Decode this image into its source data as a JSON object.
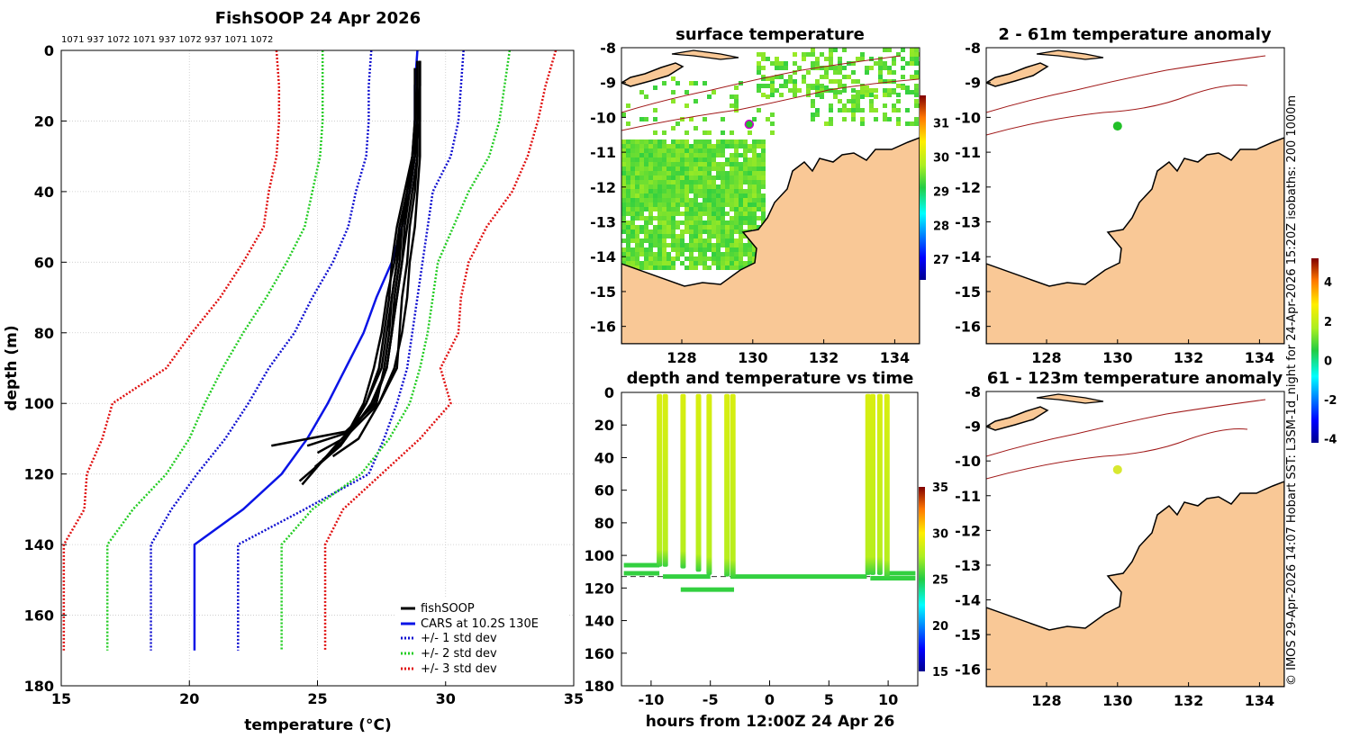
{
  "figure": {
    "main_title": "FishSOOP 24 Apr 2026",
    "profile_ids": "1071 937 1072 1071 937 1072 937 1071 1072",
    "credit": "© IMOS 29-Apr-2026 14:07 Hobart SST: L3SM-1d_night for 24-Apr-2026 15:20Z isobaths: 200  1000m"
  },
  "colors": {
    "land": "#f9c896",
    "fishsoop": "#000000",
    "cars": "#0a14e6",
    "std1": "#1010d0",
    "std2": "#22cc22",
    "std3": "#e01010",
    "isobath": "#a01818",
    "dashed": "#333333"
  },
  "chart_data": [
    {
      "id": "profile",
      "type": "line",
      "title": "",
      "xlabel": "temperature (°C)",
      "ylabel": "depth (m)",
      "xlim": [
        15,
        35
      ],
      "ylim": [
        180,
        0
      ],
      "xticks": [
        15,
        20,
        25,
        30,
        35
      ],
      "yticks": [
        0,
        20,
        40,
        60,
        80,
        100,
        120,
        140,
        160,
        180
      ],
      "grid": true,
      "legend_position": "bottom-right",
      "legend": [
        "fishSOOP",
        "CARS at 10.2S 130E",
        "+/- 1 std dev",
        "+/- 2 std dev",
        "+/- 3 std dev"
      ],
      "depth": [
        0,
        10,
        20,
        30,
        40,
        50,
        60,
        70,
        80,
        90,
        100,
        110,
        120,
        130,
        140,
        170
      ],
      "series": [
        {
          "name": "CARS at 10.2S 130E",
          "style": "solid",
          "color_key": "cars",
          "temp": [
            28.9,
            28.8,
            28.8,
            28.8,
            28.6,
            28.3,
            27.9,
            27.3,
            26.8,
            26.1,
            25.4,
            24.6,
            23.6,
            22.1,
            20.2,
            20.2
          ]
        },
        {
          "name": "-1 std",
          "style": "dotted",
          "color_key": "std1",
          "temp": [
            27.1,
            27.0,
            27.0,
            26.9,
            26.5,
            26.2,
            25.6,
            24.8,
            24.1,
            23.1,
            22.3,
            21.4,
            20.3,
            19.3,
            18.5,
            18.5
          ]
        },
        {
          "name": "+1 std",
          "style": "dotted",
          "color_key": "std1",
          "temp": [
            30.7,
            30.6,
            30.5,
            30.2,
            29.5,
            29.3,
            29.1,
            28.9,
            28.7,
            28.5,
            28.1,
            27.6,
            27.0,
            24.5,
            21.9,
            21.9
          ]
        },
        {
          "name": "-2 std",
          "style": "dotted",
          "color_key": "std2",
          "temp": [
            25.2,
            25.2,
            25.2,
            25.1,
            24.8,
            24.5,
            23.8,
            23.0,
            22.1,
            21.3,
            20.6,
            20.0,
            19.1,
            17.8,
            16.8,
            16.8
          ]
        },
        {
          "name": "+2 std",
          "style": "dotted",
          "color_key": "std2",
          "temp": [
            32.5,
            32.3,
            32.1,
            31.7,
            30.9,
            30.3,
            29.7,
            29.5,
            29.3,
            29.0,
            28.6,
            27.8,
            26.7,
            24.8,
            23.6,
            23.6
          ]
        },
        {
          "name": "-3 std",
          "style": "dotted",
          "color_key": "std3",
          "temp": [
            23.4,
            23.5,
            23.5,
            23.4,
            23.1,
            22.9,
            22.1,
            21.2,
            20.1,
            19.1,
            17.0,
            16.6,
            16.0,
            15.9,
            15.1,
            15.1
          ]
        },
        {
          "name": "+3 std",
          "style": "dotted",
          "color_key": "std3",
          "temp": [
            34.3,
            33.9,
            33.6,
            33.2,
            32.6,
            31.6,
            30.9,
            30.6,
            30.5,
            29.8,
            30.2,
            29.0,
            27.5,
            26.0,
            25.3,
            25.3
          ]
        }
      ],
      "fishsoop_profiles": [
        {
          "depth": [
            3,
            10,
            20,
            30,
            40,
            50,
            60,
            70,
            80,
            90,
            100,
            108,
            112
          ],
          "temp": [
            28.9,
            28.9,
            28.9,
            28.9,
            28.8,
            28.6,
            28.5,
            28.3,
            28.2,
            28.1,
            27.4,
            26.3,
            24.6
          ]
        },
        {
          "depth": [
            3,
            10,
            20,
            30,
            40,
            50,
            60,
            70,
            80,
            90,
            100,
            110,
            115
          ],
          "temp": [
            29.0,
            29.0,
            29.0,
            29.0,
            28.9,
            28.8,
            28.6,
            28.5,
            28.3,
            28.0,
            27.4,
            26.6,
            25.6
          ]
        },
        {
          "depth": [
            5,
            10,
            20,
            30,
            40,
            50,
            60,
            70,
            80,
            90,
            100,
            112,
            122
          ],
          "temp": [
            28.8,
            28.8,
            28.8,
            28.7,
            28.5,
            28.2,
            28.0,
            27.7,
            27.5,
            27.2,
            26.8,
            25.9,
            24.3
          ]
        },
        {
          "depth": [
            3,
            10,
            20,
            30,
            40,
            50,
            60,
            70,
            80,
            90,
            100,
            112
          ],
          "temp": [
            29.0,
            29.0,
            29.0,
            28.8,
            28.6,
            28.3,
            28.2,
            28.0,
            27.9,
            27.7,
            27.1,
            25.9
          ]
        },
        {
          "depth": [
            3,
            10,
            20,
            30,
            40,
            50,
            60,
            70,
            80,
            90,
            100,
            110,
            116
          ],
          "temp": [
            28.9,
            28.9,
            28.8,
            28.7,
            28.4,
            28.1,
            27.9,
            27.8,
            27.6,
            27.4,
            26.9,
            26.1,
            25.2
          ]
        },
        {
          "depth": [
            3,
            10,
            20,
            30,
            40,
            50,
            60,
            70,
            80,
            90,
            100,
            111,
            118
          ],
          "temp": [
            29.0,
            29.0,
            28.9,
            28.7,
            28.5,
            28.2,
            28.1,
            27.9,
            27.7,
            27.5,
            26.9,
            26.0,
            24.9
          ]
        },
        {
          "depth": [
            3,
            10,
            20,
            30,
            40,
            50,
            60,
            70,
            80,
            90,
            100,
            112,
            123
          ],
          "temp": [
            28.9,
            28.9,
            28.9,
            28.8,
            28.6,
            28.4,
            28.3,
            28.1,
            27.9,
            27.7,
            27.2,
            25.7,
            24.4
          ]
        },
        {
          "depth": [
            3,
            10,
            20,
            30,
            40,
            50,
            60,
            70,
            80,
            90,
            100,
            108,
            112
          ],
          "temp": [
            28.9,
            28.9,
            28.9,
            28.8,
            28.5,
            28.3,
            28.1,
            27.9,
            27.8,
            27.6,
            27.3,
            26.1,
            23.2
          ]
        },
        {
          "depth": [
            3,
            10,
            20,
            30,
            40,
            50,
            60,
            70,
            80,
            90,
            100,
            110,
            114
          ],
          "temp": [
            29.0,
            29.0,
            28.9,
            28.9,
            28.7,
            28.5,
            28.3,
            28.1,
            27.9,
            27.7,
            27.2,
            26.0,
            25.0
          ]
        }
      ]
    },
    {
      "id": "timeseries",
      "type": "scatter",
      "title": "depth and temperature vs time",
      "xlabel": "hours from 12:00Z 24 Apr 26",
      "ylabel": "",
      "xlim": [
        -12.5,
        12.5
      ],
      "ylim": [
        180,
        0
      ],
      "xticks": [
        -10,
        -5,
        0,
        5,
        10
      ],
      "yticks": [
        0,
        20,
        40,
        60,
        80,
        100,
        120,
        140,
        160,
        180
      ],
      "dashed_depth": 113,
      "colorbar": {
        "min": 15,
        "max": 35,
        "ticks": [
          15,
          20,
          25,
          30,
          35
        ]
      },
      "casts": [
        {
          "t": -9.3,
          "bottom": 107
        },
        {
          "t": -8.8,
          "bottom": 107
        },
        {
          "t": -7.3,
          "bottom": 108
        },
        {
          "t": -6.0,
          "bottom": 110
        },
        {
          "t": -5.1,
          "bottom": 112
        },
        {
          "t": -3.6,
          "bottom": 113
        },
        {
          "t": -3.1,
          "bottom": 114
        },
        {
          "t": 8.3,
          "bottom": 112
        },
        {
          "t": 8.7,
          "bottom": 112
        },
        {
          "t": 9.3,
          "bottom": 112
        },
        {
          "t": 9.9,
          "bottom": 114
        }
      ],
      "surface_temp": 28.8,
      "bottom_tracks": [
        {
          "t_start": -12.3,
          "t_end": -9.3,
          "depth": 106
        },
        {
          "t_start": -12.3,
          "t_end": -9.3,
          "depth": 111
        },
        {
          "t_start": -9.0,
          "t_end": -5.0,
          "depth": 113
        },
        {
          "t_start": -7.5,
          "t_end": -3.0,
          "depth": 121
        },
        {
          "t_start": -3.3,
          "t_end": 8.2,
          "depth": 113
        },
        {
          "t_start": 10.0,
          "t_end": 12.3,
          "depth": 111
        },
        {
          "t_start": 8.5,
          "t_end": 12.3,
          "depth": 114
        }
      ],
      "bottom_temp": 25.3
    },
    {
      "id": "sst_map",
      "type": "heatmap",
      "title": "surface temperature",
      "xlim": [
        126.3,
        134.7
      ],
      "ylim": [
        -16.5,
        -8
      ],
      "xticks": [
        128,
        130,
        132,
        134
      ],
      "yticks": [
        -8,
        -9,
        -10,
        -11,
        -12,
        -13,
        -14,
        -15,
        -16
      ],
      "colorbar": {
        "min": 26.4,
        "max": 31.8,
        "ticks": [
          27,
          28,
          29,
          30,
          31
        ]
      },
      "station": {
        "lon": 129.9,
        "lat": -10.2
      }
    },
    {
      "id": "anom_shallow",
      "type": "heatmap",
      "title": "2 - 61m temperature anomaly",
      "xlim": [
        126.3,
        134.7
      ],
      "ylim": [
        -16.5,
        -8
      ],
      "xticks": [
        128,
        130,
        132,
        134
      ],
      "yticks": [
        -8,
        -9,
        -10,
        -11,
        -12,
        -13,
        -14,
        -15,
        -16
      ],
      "station": {
        "lon": 130.0,
        "lat": -10.25,
        "anomaly": 0.3
      }
    },
    {
      "id": "anom_deep",
      "type": "heatmap",
      "title": "61 - 123m temperature anomaly",
      "xlim": [
        126.3,
        134.7
      ],
      "ylim": [
        -16.5,
        -8
      ],
      "xticks": [
        128,
        130,
        132,
        134
      ],
      "yticks": [
        -8,
        -9,
        -10,
        -11,
        -12,
        -13,
        -14,
        -15,
        -16
      ],
      "station": {
        "lon": 130.0,
        "lat": -10.25,
        "anomaly": 1.6
      },
      "colorbar": {
        "min": -4.2,
        "max": 5.2,
        "ticks": [
          -4,
          -2,
          0,
          2,
          4
        ]
      }
    }
  ]
}
